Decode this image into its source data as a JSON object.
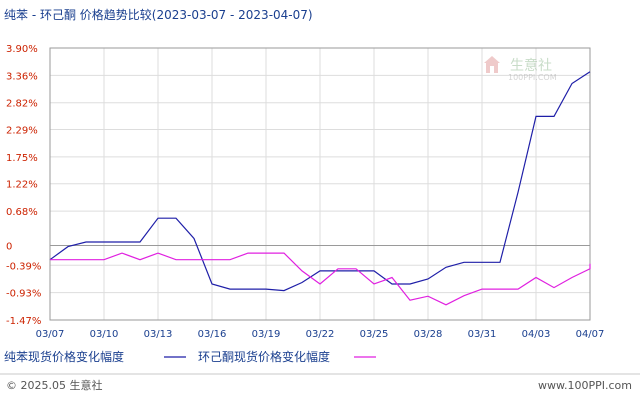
{
  "chart_data": {
    "type": "line",
    "title": "纯苯 - 环己酮 价格趋势比较(2023-03-07 - 2023-04-07)",
    "y_ticks": [
      "3.90%",
      "3.36%",
      "2.82%",
      "2.29%",
      "1.75%",
      "1.22%",
      "0.68%",
      "0",
      "-0.39%",
      "-0.93%",
      "-1.47%"
    ],
    "y_tick_values": [
      3.9,
      3.36,
      2.82,
      2.29,
      1.75,
      1.22,
      0.68,
      0,
      -0.39,
      -0.93,
      -1.47
    ],
    "ylim": [
      -1.47,
      3.9
    ],
    "x_ticks": [
      "03/07",
      "03/10",
      "03/13",
      "03/16",
      "03/19",
      "03/22",
      "03/25",
      "03/28",
      "03/31",
      "04/03",
      "04/07"
    ],
    "x_tick_pos": [
      0,
      3,
      6,
      9,
      12,
      15,
      18,
      21,
      24,
      27,
      30
    ],
    "xlim": [
      0,
      30
    ],
    "grid": true,
    "legend_position": "bottom",
    "series": [
      {
        "name": "纯苯现货价格变化幅度",
        "color": "#1f1fa8",
        "points": [
          [
            0,
            -0.28
          ],
          [
            1,
            -0.02
          ],
          [
            2,
            0.07
          ],
          [
            3,
            0.07
          ],
          [
            4,
            0.07
          ],
          [
            5,
            0.07
          ],
          [
            6,
            0.54
          ],
          [
            7,
            0.54
          ],
          [
            8,
            0.14
          ],
          [
            9,
            -0.76
          ],
          [
            10,
            -0.86
          ],
          [
            11,
            -0.86
          ],
          [
            12,
            -0.86
          ],
          [
            13,
            -0.89
          ],
          [
            14,
            -0.73
          ],
          [
            15,
            -0.5
          ],
          [
            16,
            -0.5
          ],
          [
            17,
            -0.5
          ],
          [
            18,
            -0.5
          ],
          [
            19,
            -0.76
          ],
          [
            20,
            -0.76
          ],
          [
            21,
            -0.66
          ],
          [
            22,
            -0.43
          ],
          [
            23,
            -0.33
          ],
          [
            24,
            -0.33
          ],
          [
            25,
            -0.33
          ],
          [
            26,
            1.05
          ],
          [
            27,
            2.55
          ],
          [
            28,
            2.55
          ],
          [
            29,
            3.2
          ],
          [
            30,
            3.43
          ]
        ]
      },
      {
        "name": "环己酮现货价格变化幅度",
        "color": "#e020e0",
        "points": [
          [
            0,
            -0.28
          ],
          [
            1,
            -0.28
          ],
          [
            2,
            -0.28
          ],
          [
            3,
            -0.28
          ],
          [
            4,
            -0.15
          ],
          [
            5,
            -0.28
          ],
          [
            6,
            -0.15
          ],
          [
            7,
            -0.28
          ],
          [
            8,
            -0.28
          ],
          [
            9,
            -0.28
          ],
          [
            10,
            -0.28
          ],
          [
            11,
            -0.15
          ],
          [
            12,
            -0.15
          ],
          [
            13,
            -0.15
          ],
          [
            14,
            -0.5
          ],
          [
            15,
            -0.76
          ],
          [
            16,
            -0.46
          ],
          [
            17,
            -0.46
          ],
          [
            18,
            -0.76
          ],
          [
            19,
            -0.63
          ],
          [
            20,
            -1.08
          ],
          [
            21,
            -1.0
          ],
          [
            22,
            -1.17
          ],
          [
            23,
            -0.99
          ],
          [
            24,
            -0.86
          ],
          [
            25,
            -0.86
          ],
          [
            26,
            -0.86
          ],
          [
            27,
            -0.63
          ],
          [
            28,
            -0.83
          ],
          [
            29,
            -0.63
          ],
          [
            30,
            -0.46
          ],
          [
            31,
            -0.36
          ]
        ]
      }
    ]
  },
  "watermark": {
    "name": "生意社",
    "sub": "100PPI.COM"
  },
  "footer": {
    "left": "© 2025.05 生意社",
    "right": "www.100PPI.com"
  }
}
